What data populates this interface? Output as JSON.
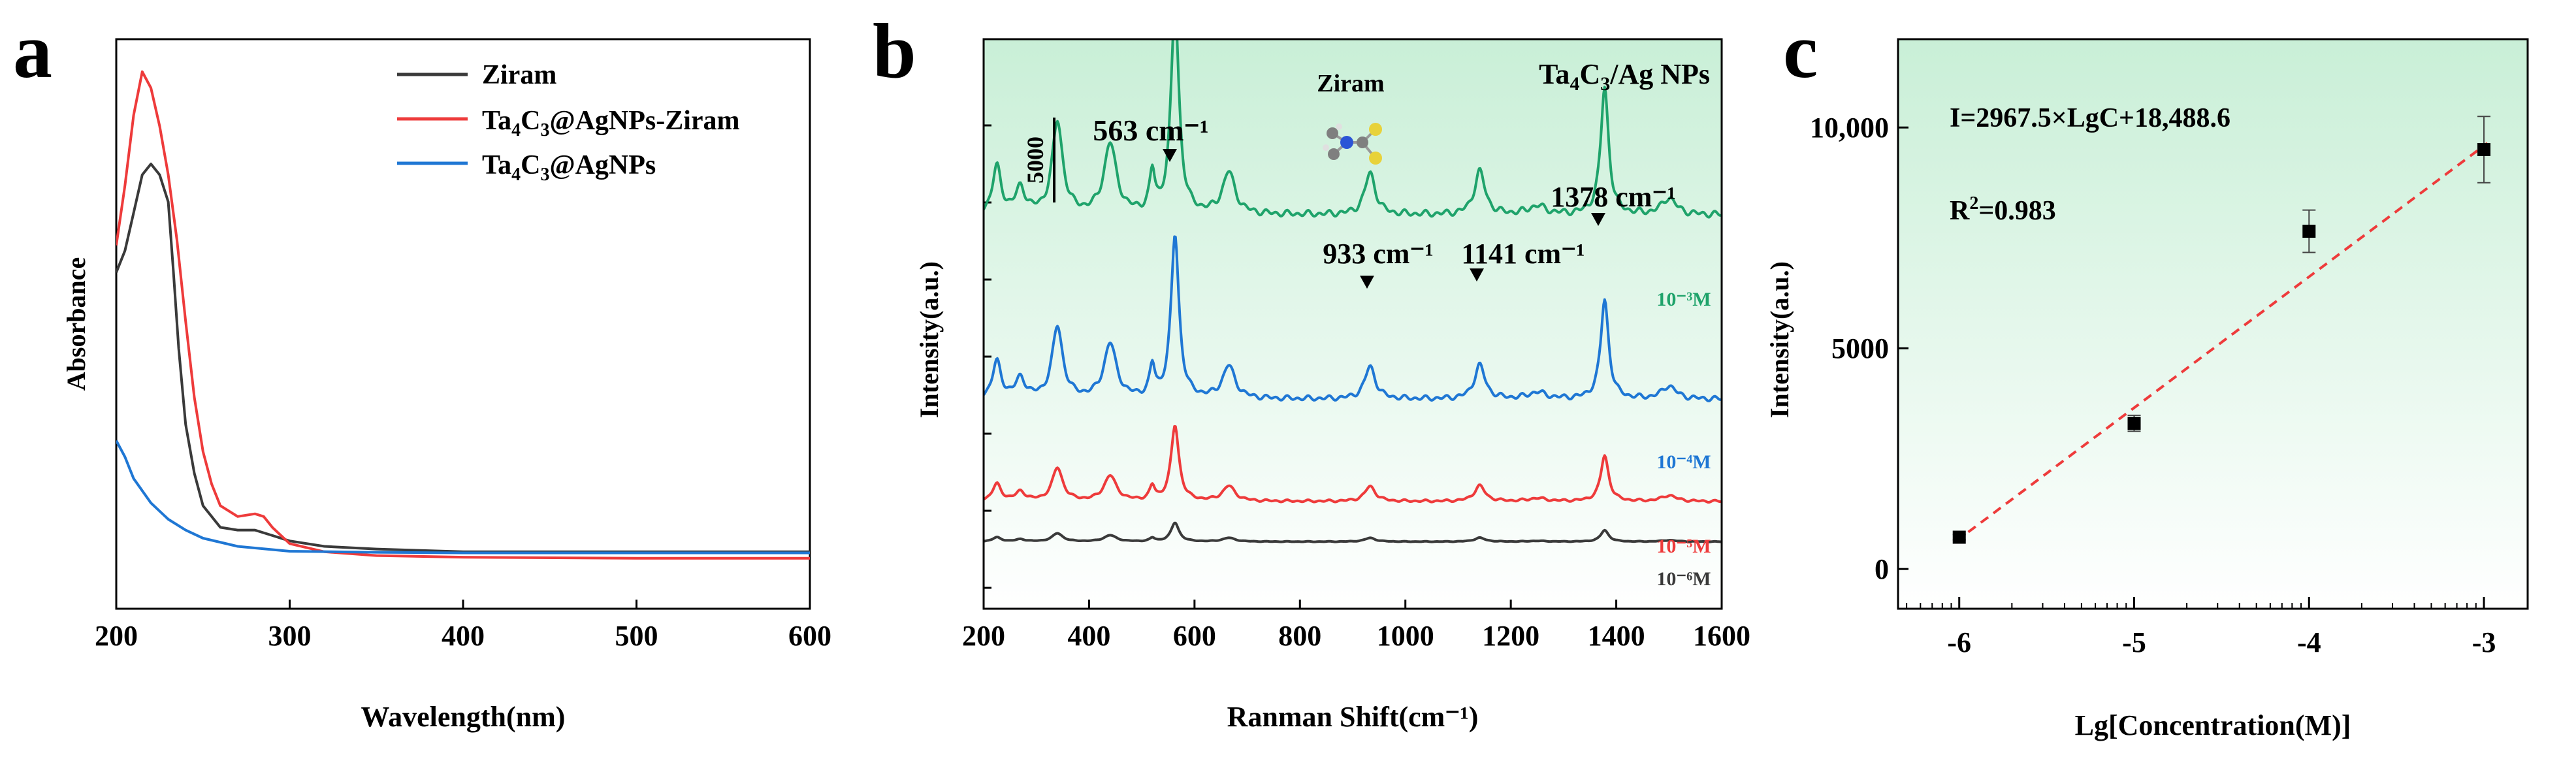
{
  "panel_a": {
    "letter": "a",
    "ylabel": "Absorbance",
    "xlabel": "Wavelength(nm)",
    "legend": {
      "ziram": "Ziram",
      "ta_ag_ziram_main": "Ta",
      "ta_ag_ziram_sub1": "4",
      "ta_ag_ziram_mid": "C",
      "ta_ag_ziram_sub2": "3",
      "ta_ag_ziram_end": "@AgNPs-Ziram",
      "ta_ag_main": "Ta",
      "ta_ag_sub1": "4",
      "ta_ag_mid": "C",
      "ta_ag_sub2": "3",
      "ta_ag_end": "@AgNPs"
    }
  },
  "panel_b": {
    "letter": "b",
    "ylabel": "Intensity(a.u.)",
    "xlabel": "Ranman Shift(cm⁻¹)",
    "scale_bar": "5000",
    "molecule_label": "Ziram",
    "title_main": "Ta",
    "title_sub1": "4",
    "title_mid": "C",
    "title_sub2": "3",
    "title_end": "/Ag NPs",
    "peaks": [
      "563 cm⁻¹",
      "933 cm⁻¹",
      "1141 cm⁻¹",
      "1378 cm⁻¹"
    ],
    "conc_labels": [
      "10⁻³M",
      "10⁻⁴M",
      "10⁻⁵M",
      "10⁻⁶M"
    ]
  },
  "panel_c": {
    "letter": "c",
    "ylabel": "Intensity(a.u.)",
    "xlabel": "Lg[Concentration(M)]",
    "equation": "I=2967.5×LgC+18,488.6",
    "r2_main": "R",
    "r2_sup": "2",
    "r2_end": "=0.983"
  },
  "chart_data": [
    {
      "type": "line",
      "panel": "a",
      "xlabel": "Wavelength(nm)",
      "ylabel": "Absorbance",
      "xlim": [
        200,
        600
      ],
      "x_ticks": [
        "200",
        "300",
        "400",
        "500",
        "600"
      ],
      "series": [
        {
          "name": "Ziram",
          "color": "#3a3a3a",
          "x": [
            200,
            205,
            210,
            215,
            220,
            225,
            230,
            233,
            236,
            240,
            245,
            250,
            260,
            270,
            280,
            290,
            300,
            320,
            350,
            400,
            500,
            600
          ],
          "y": [
            0.62,
            0.66,
            0.73,
            0.8,
            0.82,
            0.8,
            0.75,
            0.62,
            0.48,
            0.34,
            0.25,
            0.19,
            0.15,
            0.145,
            0.145,
            0.135,
            0.125,
            0.115,
            0.11,
            0.105,
            0.105,
            0.105
          ]
        },
        {
          "name": "Ta4C3@AgNPs-Ziram",
          "color": "#ee3b3b",
          "x": [
            200,
            205,
            210,
            215,
            220,
            225,
            230,
            235,
            240,
            245,
            250,
            255,
            260,
            270,
            280,
            285,
            290,
            300,
            320,
            350,
            400,
            500,
            600
          ],
          "y": [
            0.67,
            0.78,
            0.91,
            0.99,
            0.96,
            0.89,
            0.8,
            0.68,
            0.53,
            0.39,
            0.29,
            0.23,
            0.19,
            0.17,
            0.175,
            0.17,
            0.15,
            0.12,
            0.105,
            0.098,
            0.095,
            0.093,
            0.093
          ]
        },
        {
          "name": "Ta4C3@AgNPs",
          "color": "#1f77d4",
          "x": [
            200,
            205,
            210,
            220,
            230,
            240,
            250,
            270,
            300,
            350,
            400,
            500,
            600
          ],
          "y": [
            0.31,
            0.28,
            0.24,
            0.195,
            0.165,
            0.145,
            0.13,
            0.115,
            0.106,
            0.104,
            0.103,
            0.103,
            0.103
          ]
        }
      ]
    },
    {
      "type": "line",
      "panel": "b",
      "xlabel": "Ranman Shift(cm⁻¹)",
      "ylabel": "Intensity(a.u.)",
      "xlim": [
        200,
        1600
      ],
      "x_ticks": [
        "200",
        "400",
        "600",
        "800",
        "1000",
        "1200",
        "1400",
        "1600"
      ],
      "peak_positions": [
        225,
        270,
        340,
        440,
        520,
        563,
        665,
        933,
        1141,
        1250,
        1378,
        1500
      ],
      "peak_heights_1e-3": [
        2800,
        1500,
        5500,
        4200,
        2300,
        12500,
        2500,
        2500,
        2600,
        500,
        7600,
        1000
      ],
      "series": [
        {
          "name": "10⁻³M",
          "color": "#1fa36b",
          "baseline": 20000
        },
        {
          "name": "10⁻⁴M",
          "color": "#1f77d4",
          "baseline": 9000
        },
        {
          "name": "10⁻⁵M",
          "color": "#ee3b3b",
          "baseline": 2900
        },
        {
          "name": "10⁻⁶M",
          "color": "#3a3a3a",
          "baseline": 500
        }
      ]
    },
    {
      "type": "scatter",
      "panel": "c",
      "xlabel": "Lg[Concentration(M)]",
      "ylabel": "Intensity(a.u.)",
      "xlim": [
        -6.35,
        -2.75
      ],
      "ylim": [
        -900,
        12000
      ],
      "x_ticks": [
        "-6",
        "-5",
        "-4",
        "-3"
      ],
      "y_ticks": [
        "0",
        "5000",
        "10,000"
      ],
      "x": [
        -6,
        -5,
        -4,
        -3
      ],
      "y": [
        720,
        3300,
        7650,
        9500
      ],
      "err": [
        60,
        180,
        480,
        750
      ],
      "fit": {
        "slope": 2967.5,
        "intercept": 18488.6,
        "color": "#ee3b3b"
      }
    }
  ]
}
